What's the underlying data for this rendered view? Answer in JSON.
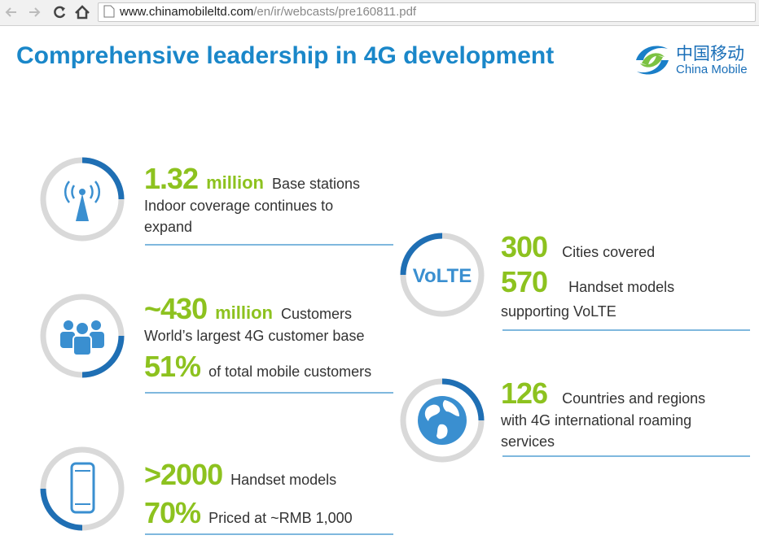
{
  "browser": {
    "url_host": "www.chinamobileltd.com",
    "url_path": "/en/ir/webcasts/pre160811.pdf"
  },
  "slide": {
    "title": "Comprehensive leadership in 4G development",
    "logo": {
      "chinese": "中国移动",
      "english": "China Mobile"
    },
    "items": [
      {
        "figure": "1.32",
        "unit": "million",
        "label": "Base stations",
        "note": "Indoor coverage continues to expand"
      },
      {
        "figure": "~430",
        "unit": "million",
        "label": "Customers",
        "note": "World’s largest 4G customer base",
        "figure2": "51%",
        "label2": "of total mobile customers"
      },
      {
        "figure": ">2000",
        "label": "Handset models",
        "figure2": "70%",
        "label2": "Priced at ~RMB 1,000"
      },
      {
        "icon_text": "VoLTE",
        "figure": "300",
        "label": "Cities covered",
        "figure2": "570",
        "label2": "Handset models supporting VoLTE"
      },
      {
        "figure": "126",
        "label": "Countries and regions with 4G international roaming services"
      }
    ]
  }
}
